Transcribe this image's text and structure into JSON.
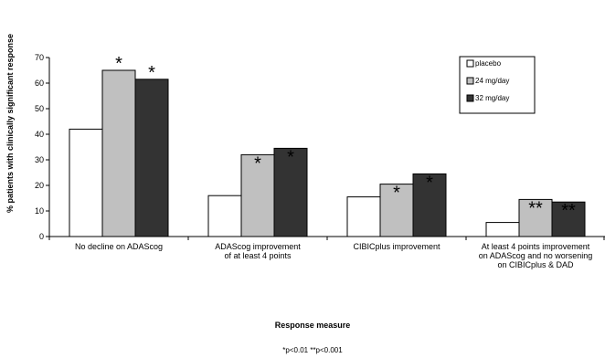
{
  "chart_data": {
    "type": "bar",
    "title": "",
    "ylabel": "% patients with clinically significant response",
    "xlabel": "Response measure",
    "footnote": "*p<0.01 **p<0.001",
    "ylim": [
      0,
      70
    ],
    "yticks": [
      "0",
      "10",
      "20",
      "30",
      "40",
      "50",
      "60",
      "70"
    ],
    "grid": false,
    "legend_position": "top-right",
    "categories": [
      [
        "No decline on ADAScog"
      ],
      [
        "ADAScog improvement",
        "of at least 4 points"
      ],
      [
        "CIBICplus improvement"
      ],
      [
        "At least 4 points improvement",
        "on ADAScog and no worsening",
        "on CIBICplus & DAD"
      ]
    ],
    "series": [
      {
        "name": "placebo",
        "color": "#ffffff",
        "values": [
          42,
          16,
          15.5,
          5.5
        ]
      },
      {
        "name": "24 mg/day",
        "color": "#c0c0c0",
        "values": [
          65,
          32,
          20.5,
          14.5
        ]
      },
      {
        "name": "32 mg/day",
        "color": "#333333",
        "values": [
          61.5,
          34.5,
          24.5,
          13.5
        ]
      }
    ],
    "significance": [
      {
        "category": 0,
        "series": 1,
        "label": "*",
        "position": "above"
      },
      {
        "category": 0,
        "series": 2,
        "label": "*",
        "position": "above"
      },
      {
        "category": 1,
        "series": 1,
        "label": "*",
        "position": "inside"
      },
      {
        "category": 1,
        "series": 2,
        "label": "*",
        "position": "inside"
      },
      {
        "category": 2,
        "series": 1,
        "label": "*",
        "position": "inside"
      },
      {
        "category": 2,
        "series": 2,
        "label": "*",
        "position": "inside"
      },
      {
        "category": 3,
        "series": 1,
        "label": "**",
        "position": "inside"
      },
      {
        "category": 3,
        "series": 2,
        "label": "**",
        "position": "inside"
      }
    ]
  }
}
